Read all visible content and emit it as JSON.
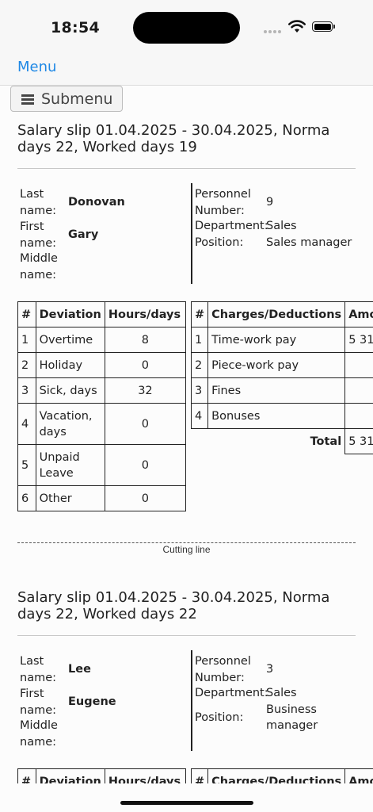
{
  "status_bar": {
    "time": "18:54"
  },
  "nav": {
    "menu_label": "Menu",
    "submenu_label": "Submenu"
  },
  "cutting_line": "Cutting line",
  "labels": {
    "last_name": "Last\nname:",
    "first_name": "First\nname:",
    "middle_name": "Middle\nname:",
    "personnel_number": "Personnel\nNumber:",
    "department": "Department:",
    "position": "Position:",
    "total": "Total"
  },
  "deviation_headers": [
    "#",
    "Deviation",
    "Hours/days"
  ],
  "charges_headers": [
    "#",
    "Charges/Deductions",
    "Amount"
  ],
  "slips": [
    {
      "title": "Salary slip 01.04.2025 - 30.04.2025, Norma days 22, Worked days 19",
      "last_name": "Donovan",
      "first_name": "Gary",
      "middle_name": "",
      "personnel_number": "9",
      "department": "Sales",
      "position": "Sales manager",
      "deviations": [
        {
          "n": "1",
          "name": "Overtime",
          "value": "8"
        },
        {
          "n": "2",
          "name": "Holiday",
          "value": "0"
        },
        {
          "n": "3",
          "name": "Sick, days",
          "value": "32"
        },
        {
          "n": "4",
          "name": "Vacation, days",
          "value": "0"
        },
        {
          "n": "5",
          "name": "Unpaid Leave",
          "value": "0"
        },
        {
          "n": "6",
          "name": "Other",
          "value": "0"
        }
      ],
      "charges": [
        {
          "n": "1",
          "name": "Time-work pay",
          "amount": "5 31"
        },
        {
          "n": "2",
          "name": "Piece-work pay",
          "amount": ""
        },
        {
          "n": "3",
          "name": "Fines",
          "amount": ""
        },
        {
          "n": "4",
          "name": "Bonuses",
          "amount": ""
        }
      ],
      "total": "5 31"
    },
    {
      "title": "Salary slip 01.04.2025 - 30.04.2025, Norma days 22, Worked days 22",
      "last_name": "Lee",
      "first_name": "Eugene",
      "middle_name": "",
      "personnel_number": "3",
      "department": "Sales",
      "position": "Business manager"
    }
  ]
}
